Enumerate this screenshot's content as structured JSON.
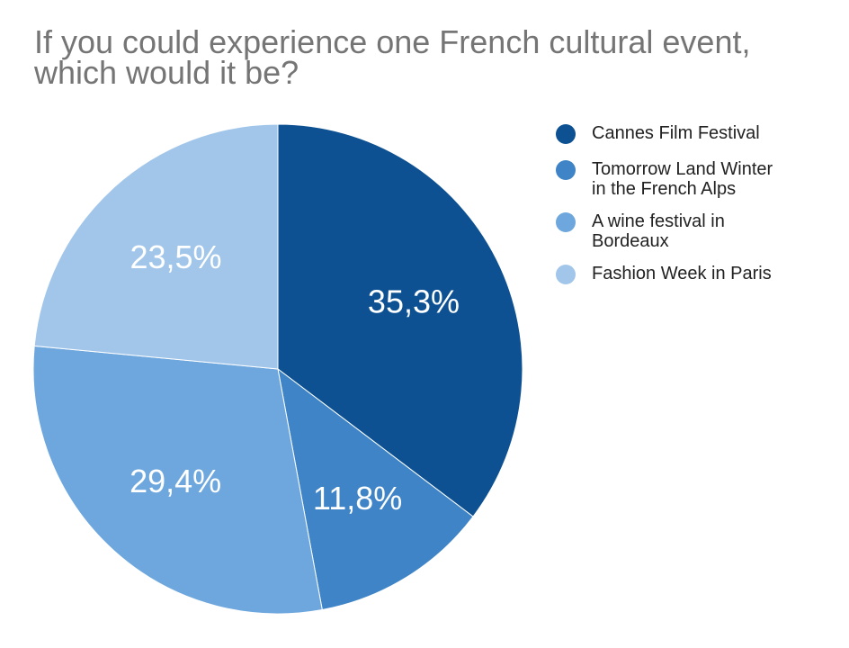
{
  "chart_data": {
    "type": "pie",
    "title_lines": [
      "If you could experience one French cultural event,",
      "which would it be?"
    ],
    "start_angle_deg": 0,
    "direction": "clockwise",
    "slices": [
      {
        "label": "Cannes Film Festival",
        "value": 35.3,
        "display": "35,3%",
        "color": "#0d5192"
      },
      {
        "label": "Tomorrow Land Winter in the French Alps",
        "value": 11.8,
        "display": "11,8%",
        "color": "#3e84c6"
      },
      {
        "label": "A wine festival in Bordeaux",
        "value": 29.4,
        "display": "29,4%",
        "color": "#6ea7dd"
      },
      {
        "label": "Fashion Week in Paris",
        "value": 23.5,
        "display": "23,5%",
        "color": "#a2c6ea"
      }
    ],
    "legend_position": "right",
    "legend": [
      {
        "lines": [
          "Cannes Film Festival"
        ]
      },
      {
        "lines": [
          "Tomorrow Land Winter",
          "in the French Alps"
        ]
      },
      {
        "lines": [
          "A wine festival in",
          "Bordeaux"
        ]
      },
      {
        "lines": [
          "Fashion Week in Paris"
        ]
      }
    ]
  }
}
